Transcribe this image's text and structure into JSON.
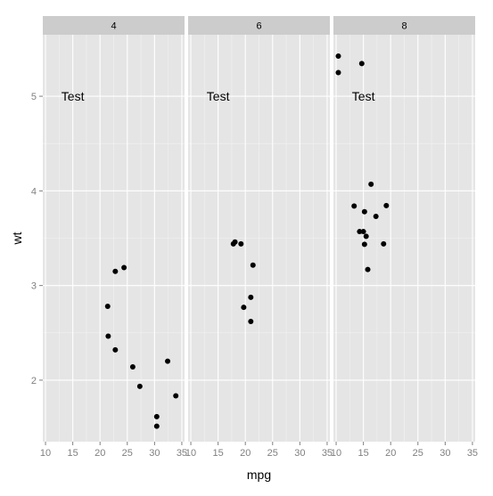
{
  "chart_data": {
    "type": "scatter",
    "facet_by": "cyl",
    "xlabel": "mpg",
    "ylabel": "wt",
    "xlim": [
      9.5,
      35.5
    ],
    "ylim": [
      1.35,
      5.65
    ],
    "x_ticks": [
      10,
      15,
      20,
      25,
      30,
      35
    ],
    "y_ticks": [
      2,
      3,
      4,
      5
    ],
    "grid": true,
    "annotation": {
      "text": "Test",
      "x": 15,
      "y": 5
    },
    "facets": [
      {
        "label": "4",
        "points": [
          {
            "x": 22.8,
            "y": 2.32
          },
          {
            "x": 24.4,
            "y": 3.19
          },
          {
            "x": 22.8,
            "y": 3.15
          },
          {
            "x": 32.4,
            "y": 2.2
          },
          {
            "x": 30.4,
            "y": 1.615
          },
          {
            "x": 33.9,
            "y": 1.835
          },
          {
            "x": 21.5,
            "y": 2.465
          },
          {
            "x": 27.3,
            "y": 1.935
          },
          {
            "x": 26.0,
            "y": 2.14
          },
          {
            "x": 30.4,
            "y": 1.513
          },
          {
            "x": 21.4,
            "y": 2.78
          }
        ]
      },
      {
        "label": "6",
        "points": [
          {
            "x": 21.0,
            "y": 2.62
          },
          {
            "x": 21.0,
            "y": 2.875
          },
          {
            "x": 21.4,
            "y": 3.215
          },
          {
            "x": 18.1,
            "y": 3.46
          },
          {
            "x": 19.2,
            "y": 3.44
          },
          {
            "x": 17.8,
            "y": 3.44
          },
          {
            "x": 19.7,
            "y": 2.77
          }
        ]
      },
      {
        "label": "8",
        "points": [
          {
            "x": 18.7,
            "y": 3.44
          },
          {
            "x": 14.3,
            "y": 3.57
          },
          {
            "x": 16.4,
            "y": 4.07
          },
          {
            "x": 17.3,
            "y": 3.73
          },
          {
            "x": 15.2,
            "y": 3.78
          },
          {
            "x": 10.4,
            "y": 5.25
          },
          {
            "x": 10.4,
            "y": 5.424
          },
          {
            "x": 14.7,
            "y": 5.345
          },
          {
            "x": 15.5,
            "y": 3.52
          },
          {
            "x": 15.2,
            "y": 3.435
          },
          {
            "x": 13.3,
            "y": 3.84
          },
          {
            "x": 19.2,
            "y": 3.845
          },
          {
            "x": 15.8,
            "y": 3.17
          },
          {
            "x": 15.0,
            "y": 3.57
          }
        ]
      }
    ],
    "colors": {
      "panel_background": "#e5e5e5",
      "strip_background": "#cccccc",
      "grid_major": "#ffffff",
      "grid_minor": "#f2f2f2",
      "point": "#000000",
      "tick_label": "#7f7f7f",
      "text": "#000000"
    }
  }
}
